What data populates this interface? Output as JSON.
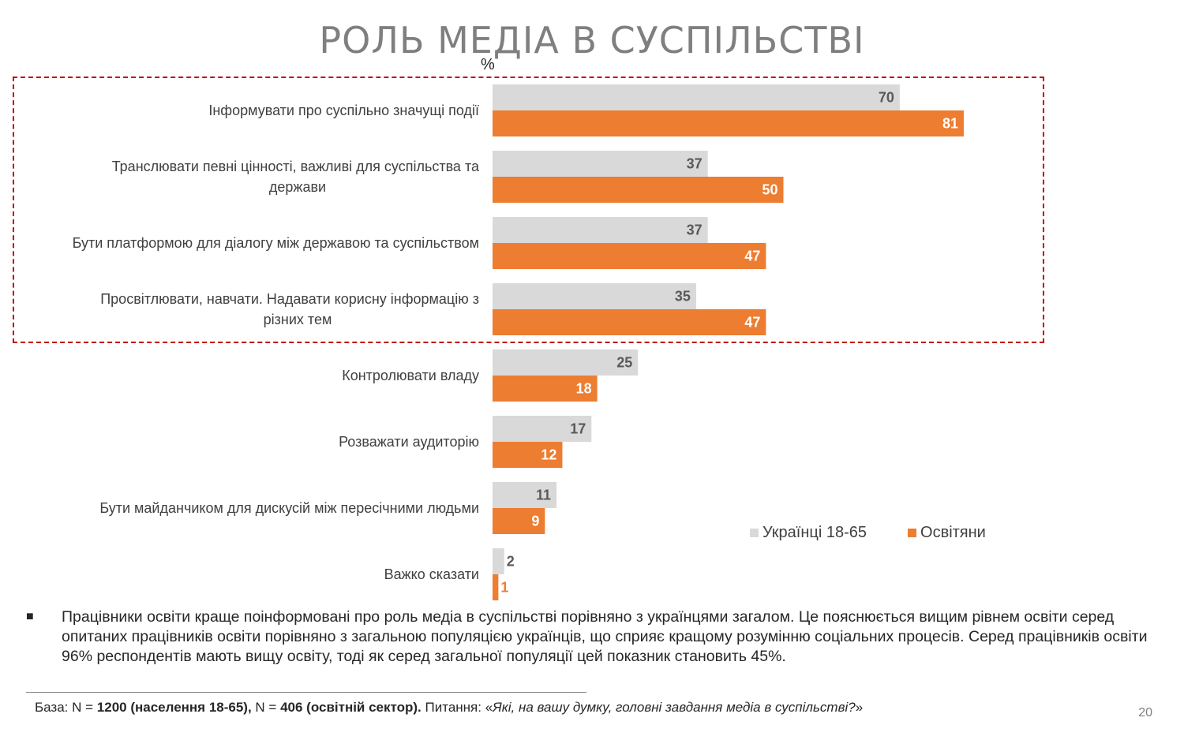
{
  "slide": {
    "title": "РОЛЬ МЕДІА В СУСПІЛЬСТВІ",
    "unit": "%",
    "page_number": "20"
  },
  "colors": {
    "series_general": "#d9d9d9",
    "series_educators": "#ed7d31",
    "highlight_border": "#c00000",
    "title": "#7f7f7f"
  },
  "chart_data": {
    "type": "bar",
    "orientation": "horizontal",
    "categories": [
      "Інформувати про суспільно значущі події",
      "Транслювати певні цінності, важливі для суспільства та держави",
      "Бути платформою для діалогу між державою та суспільством",
      "Просвітлювати, навчати. Надавати корисну інформацію з різних тем",
      "Контролювати владу",
      "Розважати аудиторію",
      "Бути майданчиком для дискусій між пересічними людьми",
      "Важко сказати"
    ],
    "series": [
      {
        "name": "Українці 18-65",
        "values": [
          70,
          37,
          37,
          35,
          25,
          17,
          11,
          2
        ]
      },
      {
        "name": "Освітяни",
        "values": [
          81,
          50,
          47,
          47,
          18,
          12,
          9,
          1
        ]
      }
    ],
    "xlim": [
      0,
      100
    ],
    "legend_position": "bottom-right",
    "grid": false,
    "highlighted_categories": 4
  },
  "note": {
    "bullet": "■",
    "text": "Працівники освіти краще поінформовані про роль медіа в суспільстві порівняно з українцями загалом. Це пояснюється вищим рівнем освіти серед опитаних працівників освіти порівняно з загальною популяцією українців, що сприяє кращому розумінню соціальних процесів. Серед працівників освіти 96% респондентів мають вищу освіту, тоді як серед загальної популяції цей показник становить 45%."
  },
  "source": {
    "base_label": "База: N = ",
    "base_n1": "1200 (населення 18-65),",
    "base_mid": " N = ",
    "base_n2": "406 (освітній сектор).",
    "question_label": " Питання: «",
    "question": "Які, на вашу думку, головні завдання медіа в суспільстві?",
    "question_end": "»"
  }
}
